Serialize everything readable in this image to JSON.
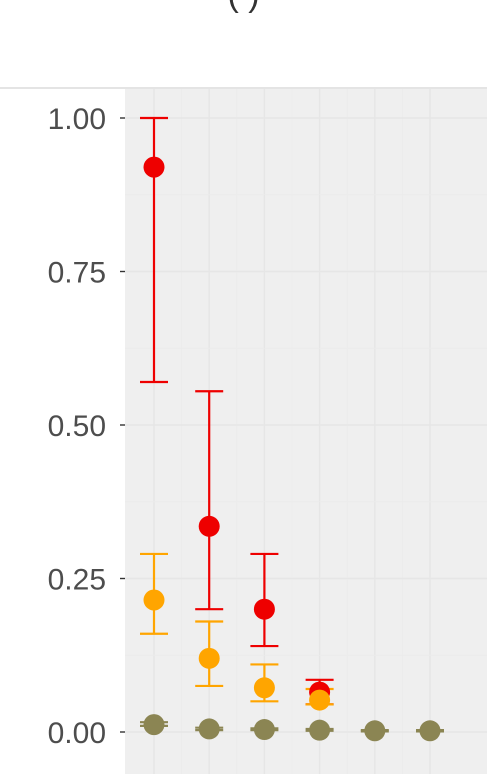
{
  "chart_data": {
    "type": "scatter",
    "title": "",
    "xlabel": "",
    "ylabel": "",
    "ylim": [
      0,
      1
    ],
    "y_ticks": [
      "0.00",
      "0.25",
      "0.50",
      "0.75",
      "1.00"
    ],
    "x": [
      1,
      2,
      3,
      4,
      5,
      6
    ],
    "grid": true,
    "series": [
      {
        "color": "#ee0000",
        "points": [
          {
            "x": 1,
            "y": 0.92,
            "lower": 0.57,
            "upper": 1.0
          },
          {
            "x": 2,
            "y": 0.335,
            "lower": 0.2,
            "upper": 0.555
          },
          {
            "x": 3,
            "y": 0.2,
            "lower": 0.14,
            "upper": 0.29
          },
          {
            "x": 4,
            "y": 0.065,
            "lower": 0.045,
            "upper": 0.085
          }
        ]
      },
      {
        "color": "#ffa500",
        "points": [
          {
            "x": 1,
            "y": 0.215,
            "lower": 0.16,
            "upper": 0.29
          },
          {
            "x": 2,
            "y": 0.12,
            "lower": 0.075,
            "upper": 0.18
          },
          {
            "x": 3,
            "y": 0.072,
            "lower": 0.05,
            "upper": 0.11
          },
          {
            "x": 4,
            "y": 0.052,
            "lower": 0.045,
            "upper": 0.07
          }
        ]
      },
      {
        "color": "#8b8553",
        "points": [
          {
            "x": 1,
            "y": 0.012,
            "lower": 0.01,
            "upper": 0.016
          },
          {
            "x": 2,
            "y": 0.005,
            "lower": 0.003,
            "upper": 0.007
          },
          {
            "x": 3,
            "y": 0.004,
            "lower": 0.003,
            "upper": 0.006
          },
          {
            "x": 4,
            "y": 0.003,
            "lower": 0.002,
            "upper": 0.005
          },
          {
            "x": 5,
            "y": 0.002,
            "lower": 0.001,
            "upper": 0.003
          },
          {
            "x": 6,
            "y": 0.002,
            "lower": 0.001,
            "upper": 0.003
          }
        ]
      }
    ]
  },
  "title_fragment": "(                              )"
}
